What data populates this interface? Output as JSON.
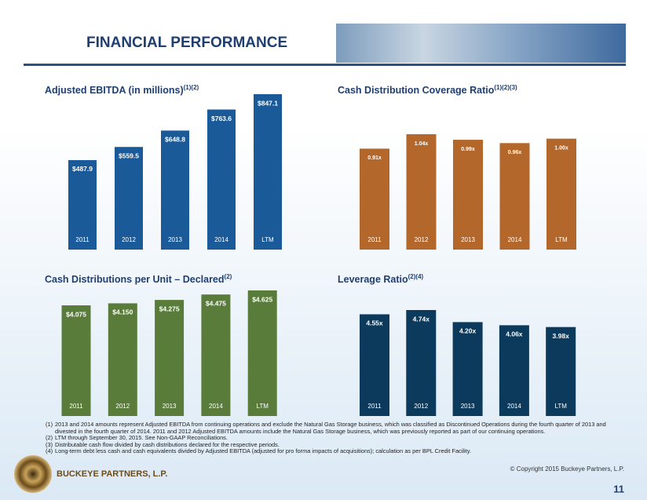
{
  "header": {
    "title": "FINANCIAL PERFORMANCE"
  },
  "chart_data": [
    {
      "type": "bar",
      "title": "Adjusted EBITDA (in millions)",
      "title_superscript": "(1)(2)",
      "categories": [
        "2011",
        "2012",
        "2013",
        "2014",
        "LTM"
      ],
      "values": [
        487.9,
        559.5,
        648.8,
        763.6,
        847.1
      ],
      "value_labels": [
        "$487.9",
        "$559.5",
        "$648.8",
        "$763.6",
        "$847.1"
      ],
      "color": "#1b5a98"
    },
    {
      "type": "bar",
      "title": "Cash Distribution Coverage Ratio",
      "title_superscript": "(1)(2)(3)",
      "categories": [
        "2011",
        "2012",
        "2013",
        "2014",
        "LTM"
      ],
      "values": [
        0.91,
        1.04,
        0.99,
        0.96,
        1.0
      ],
      "value_labels": [
        "0.91x",
        "1.04x",
        "0.99x",
        "0.96x",
        "1.00x"
      ],
      "color": "#b4672a"
    },
    {
      "type": "bar",
      "title": "Cash Distributions per Unit – Declared",
      "title_superscript": "(2)",
      "categories": [
        "2011",
        "2012",
        "2013",
        "2014",
        "LTM"
      ],
      "values": [
        4.075,
        4.15,
        4.275,
        4.475,
        4.625
      ],
      "value_labels": [
        "$4.075",
        "$4.150",
        "$4.275",
        "$4.475",
        "$4.625"
      ],
      "color": "#5a7c3a"
    },
    {
      "type": "bar",
      "title": "Leverage Ratio",
      "title_superscript": "(2)(4)",
      "categories": [
        "2011",
        "2012",
        "2013",
        "2014",
        "LTM"
      ],
      "values": [
        4.55,
        4.74,
        4.2,
        4.06,
        3.98
      ],
      "value_labels": [
        "4.55x",
        "4.74x",
        "4.20x",
        "4.06x",
        "3.98x"
      ],
      "color": "#0c3a5c"
    }
  ],
  "footnotes": [
    {
      "marker": "(1)",
      "text": "2013 and 2014 amounts represent Adjusted EBITDA from continuing operations and exclude the Natural Gas Storage business, which was classified as Discontinued Operations during the fourth quarter of 2013 and divested in the fourth quarter of 2014.  2011 and 2012 Adjusted EBITDA amounts include the Natural Gas  Storage business, which was previously reported as part of our continuing operations."
    },
    {
      "marker": "(2)",
      "text": "LTM through September 30, 2015. See Non-GAAP Reconciliations."
    },
    {
      "marker": "(3)",
      "text": "Distributable cash flow divided by cash distributions declared for the respective periods."
    },
    {
      "marker": "(4)",
      "text": "Long-term debt less cash and cash equivalents divided by Adjusted EBITDA (adjusted for pro forma impacts of acquisitions); calculation as per BPL Credit Facility."
    }
  ],
  "footer": {
    "company": "BUCKEYE PARTNERS, L.P.",
    "copyright": "© Copyright 2015 Buckeye Partners, L.P.",
    "page_number": "11"
  }
}
